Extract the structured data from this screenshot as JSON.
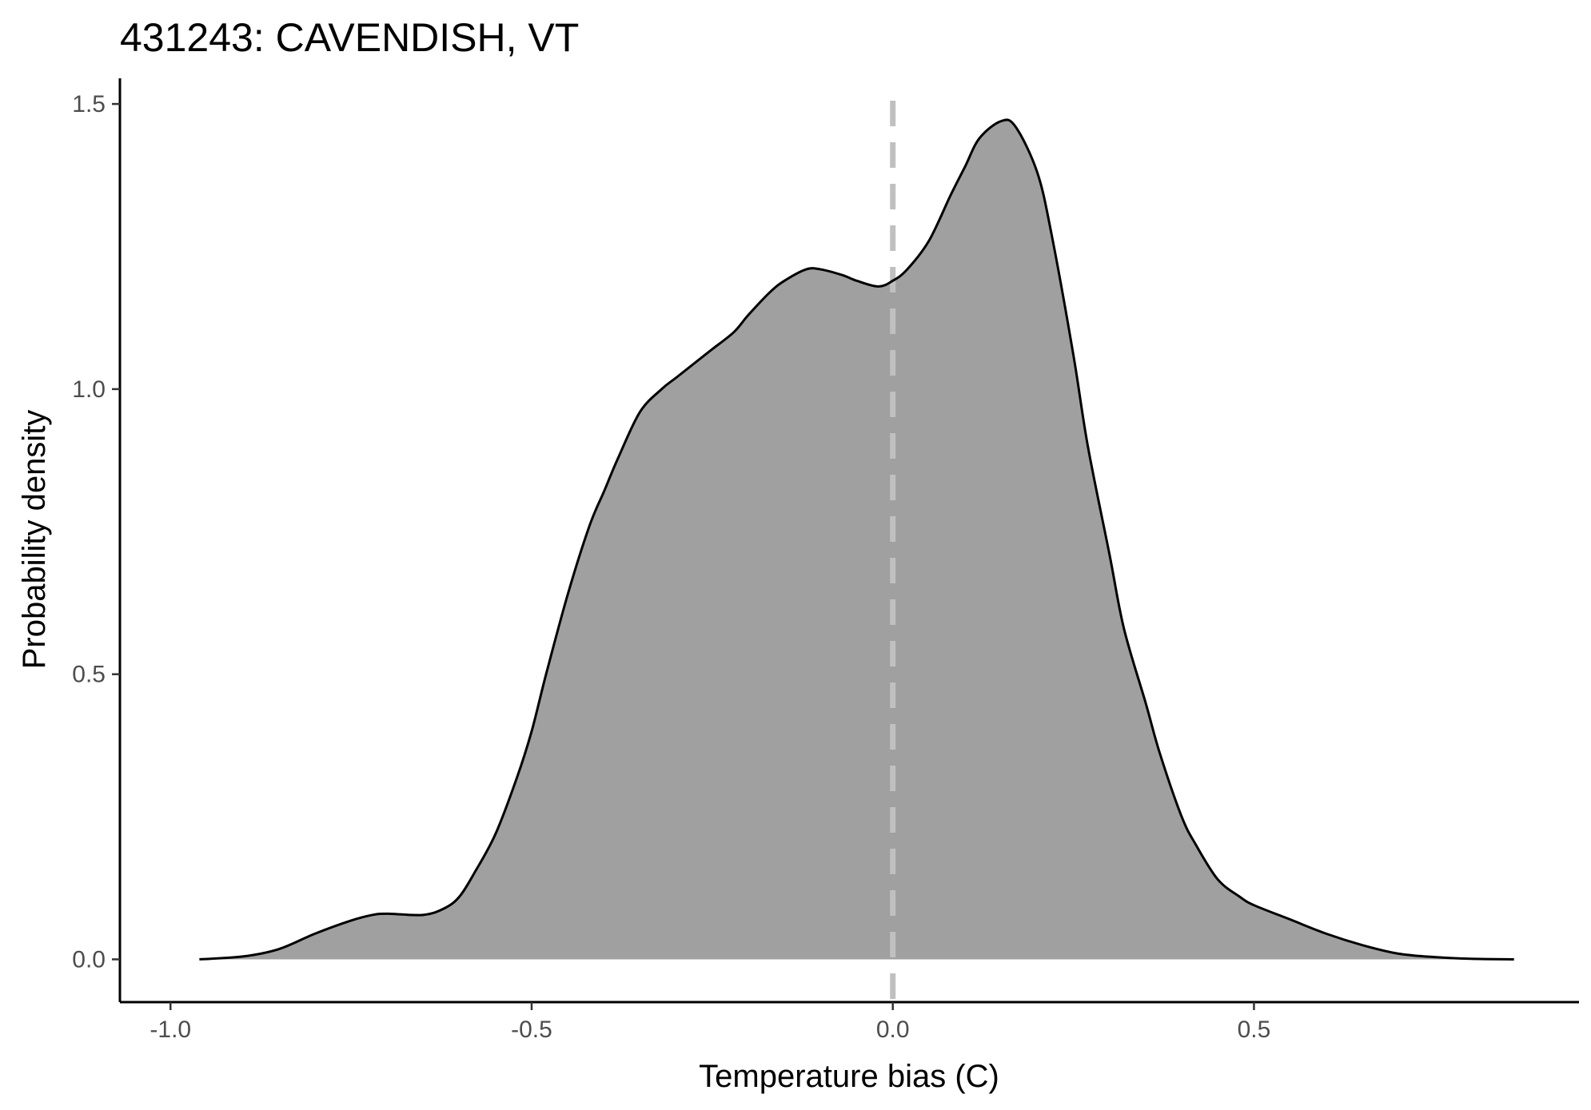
{
  "chart_data": {
    "type": "area",
    "title": "431243: CAVENDISH, VT",
    "xlabel": "Temperature bias (C)",
    "ylabel": "Probability density",
    "xlim": [
      -1.07,
      0.95
    ],
    "ylim": [
      -0.075,
      1.545
    ],
    "x_ticks": [
      -1.0,
      -0.5,
      0.0,
      0.5
    ],
    "x_tick_labels": [
      "-1.0",
      "-0.5",
      "0.0",
      "0.5"
    ],
    "y_ticks": [
      0.0,
      0.5,
      1.0,
      1.5
    ],
    "y_tick_labels": [
      "0.0",
      "0.5",
      "1.0",
      "1.5"
    ],
    "grid": false,
    "reference_line": {
      "x": 0.0,
      "style": "dashed",
      "color": "#c0c0c0"
    },
    "fill_color": "#a0a0a0",
    "line_color": "#000000",
    "series": [
      {
        "x": [
          -0.96,
          -0.9,
          -0.85,
          -0.8,
          -0.75,
          -0.72,
          -0.7,
          -0.65,
          -0.62,
          -0.6,
          -0.58,
          -0.55,
          -0.52,
          -0.5,
          -0.48,
          -0.45,
          -0.42,
          -0.4,
          -0.38,
          -0.35,
          -0.32,
          -0.3,
          -0.27,
          -0.25,
          -0.22,
          -0.2,
          -0.17,
          -0.15,
          -0.12,
          -0.1,
          -0.07,
          -0.05,
          -0.02,
          0.0,
          0.02,
          0.05,
          0.08,
          0.1,
          0.12,
          0.15,
          0.17,
          0.2,
          0.22,
          0.25,
          0.27,
          0.3,
          0.32,
          0.35,
          0.37,
          0.4,
          0.42,
          0.45,
          0.48,
          0.5,
          0.55,
          0.6,
          0.65,
          0.7,
          0.75,
          0.8,
          0.86
        ],
        "y": [
          0.0,
          0.005,
          0.018,
          0.045,
          0.068,
          0.078,
          0.08,
          0.078,
          0.09,
          0.11,
          0.15,
          0.22,
          0.32,
          0.4,
          0.5,
          0.64,
          0.76,
          0.82,
          0.88,
          0.96,
          1.0,
          1.02,
          1.05,
          1.07,
          1.1,
          1.13,
          1.17,
          1.19,
          1.21,
          1.21,
          1.2,
          1.19,
          1.18,
          1.19,
          1.21,
          1.26,
          1.34,
          1.39,
          1.44,
          1.47,
          1.46,
          1.38,
          1.27,
          1.06,
          0.9,
          0.71,
          0.58,
          0.45,
          0.36,
          0.25,
          0.2,
          0.14,
          0.11,
          0.095,
          0.07,
          0.045,
          0.025,
          0.01,
          0.004,
          0.001,
          0.0
        ]
      }
    ]
  }
}
